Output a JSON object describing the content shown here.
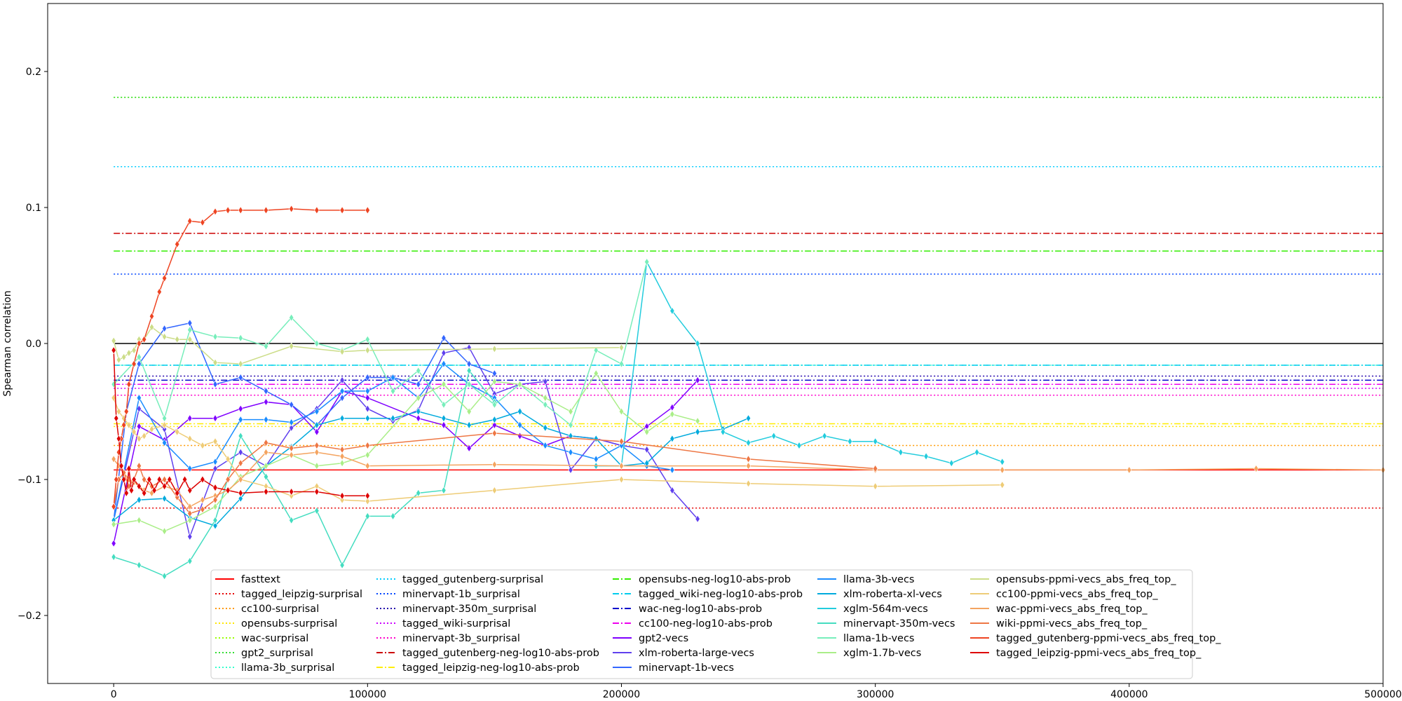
{
  "chart_data": {
    "type": "line",
    "title": "",
    "xlabel": "",
    "ylabel": "Spearman correlation",
    "xlim": [
      -26000,
      500000
    ],
    "ylim": [
      -0.25,
      0.25
    ],
    "xticks": [
      0,
      100000,
      200000,
      300000,
      400000,
      500000
    ],
    "xtick_labels": [
      "0",
      "100000",
      "200000",
      "300000",
      "400000",
      "500000"
    ],
    "yticks": [
      -0.2,
      -0.1,
      0.0,
      0.1,
      0.2
    ],
    "ytick_labels": [
      "−0.2",
      "−0.1",
      "0.0",
      "0.1",
      "0.2"
    ],
    "grid": false,
    "legend_position": "lower-center",
    "zero_line": 0.0,
    "baselines": [
      {
        "name": "fasttext",
        "value": -0.093,
        "color": "#ff0000",
        "style": "solid"
      },
      {
        "name": "tagged_leipzig-surprisal",
        "value": -0.121,
        "color": "#e60000",
        "style": "dotted"
      },
      {
        "name": "cc100-surprisal",
        "value": -0.075,
        "color": "#ff9900",
        "style": "dotted"
      },
      {
        "name": "opensubs-surprisal",
        "value": -0.061,
        "color": "#ffe600",
        "style": "dotted"
      },
      {
        "name": "wac-surprisal",
        "value": 0.181,
        "color": "#99ff00",
        "style": "dotted"
      },
      {
        "name": "gpt2_surprisal",
        "value": 0.181,
        "color": "#33dd33",
        "style": "dotted"
      },
      {
        "name": "llama-3b_surprisal",
        "value": -0.016,
        "color": "#33ffcc",
        "style": "dotted"
      },
      {
        "name": "tagged_gutenberg-surprisal",
        "value": 0.13,
        "color": "#00ccff",
        "style": "dotted"
      },
      {
        "name": "minervapt-1b_surprisal",
        "value": 0.051,
        "color": "#0044ff",
        "style": "dotted"
      },
      {
        "name": "minervapt-350m_surprisal",
        "value": -0.024,
        "color": "#2200aa",
        "style": "dotted"
      },
      {
        "name": "tagged_wiki-surprisal",
        "value": -0.033,
        "color": "#cc00ff",
        "style": "dotted"
      },
      {
        "name": "minervapt-3b_surprisal",
        "value": -0.038,
        "color": "#ff00cc",
        "style": "dotted"
      },
      {
        "name": "tagged_gutenberg-neg-log10-abs-prob",
        "value": 0.081,
        "color": "#cc0000",
        "style": "dashdot"
      },
      {
        "name": "tagged_leipzig-neg-log10-abs-prob",
        "value": -0.059,
        "color": "#ffee00",
        "style": "dashdot"
      },
      {
        "name": "opensubs-neg-log10-abs-prob",
        "value": 0.068,
        "color": "#33ee00",
        "style": "dashdot"
      },
      {
        "name": "tagged_wiki-neg-log10-abs-prob",
        "value": -0.016,
        "color": "#00ccee",
        "style": "dashdot"
      },
      {
        "name": "wac-neg-log10-abs-prob",
        "value": -0.027,
        "color": "#0000cc",
        "style": "dashdot"
      },
      {
        "name": "cc100-neg-log10-abs-prob",
        "value": -0.03,
        "color": "#ee00ee",
        "style": "dashdot"
      }
    ],
    "series": [
      {
        "name": "gpt2-vecs",
        "color": "#8000ff",
        "x": [
          0,
          10000,
          20000,
          30000,
          40000,
          50000,
          60000,
          70000,
          80000,
          90000,
          100000,
          120000,
          130000,
          140000,
          150000,
          160000,
          170000,
          180000,
          190000,
          200000,
          210000,
          220000,
          230000
        ],
        "y": [
          -0.147,
          -0.061,
          -0.071,
          -0.055,
          -0.055,
          -0.048,
          -0.043,
          -0.045,
          -0.065,
          -0.035,
          -0.04,
          -0.055,
          -0.06,
          -0.077,
          -0.06,
          -0.068,
          -0.075,
          -0.068,
          -0.07,
          -0.075,
          -0.061,
          -0.047,
          -0.027
        ]
      },
      {
        "name": "xlm-roberta-large-vecs",
        "color": "#6040ee",
        "x": [
          0,
          10000,
          20000,
          30000,
          40000,
          50000,
          60000,
          70000,
          80000,
          90000,
          100000,
          110000,
          120000,
          130000,
          140000,
          150000,
          160000,
          170000,
          180000,
          190000,
          200000,
          210000,
          220000,
          230000
        ],
        "y": [
          -0.13,
          -0.048,
          -0.063,
          -0.142,
          -0.092,
          -0.08,
          -0.09,
          -0.062,
          -0.048,
          -0.027,
          -0.048,
          -0.057,
          -0.049,
          -0.007,
          -0.003,
          -0.037,
          -0.03,
          -0.028,
          -0.093,
          -0.07,
          -0.075,
          -0.078,
          -0.108,
          -0.129
        ]
      },
      {
        "name": "minervapt-1b-vecs",
        "color": "#3366ff",
        "x": [
          0,
          5000,
          10000,
          20000,
          30000,
          40000,
          50000,
          60000,
          70000,
          80000,
          90000,
          100000,
          110000,
          120000,
          130000,
          140000,
          150000
        ],
        "y": [
          -0.13,
          -0.05,
          -0.015,
          0.011,
          0.015,
          -0.03,
          -0.025,
          -0.035,
          -0.045,
          -0.06,
          -0.04,
          -0.025,
          -0.025,
          -0.03,
          0.004,
          -0.015,
          -0.022
        ]
      },
      {
        "name": "llama-3b-vecs",
        "color": "#1a8cff",
        "x": [
          0,
          10000,
          20000,
          30000,
          40000,
          50000,
          60000,
          70000,
          80000,
          90000,
          100000,
          110000,
          120000,
          130000,
          140000,
          150000,
          160000,
          170000,
          180000,
          190000,
          200000,
          210000,
          220000
        ],
        "y": [
          -0.13,
          -0.04,
          -0.073,
          -0.092,
          -0.087,
          -0.056,
          -0.056,
          -0.058,
          -0.05,
          -0.035,
          -0.035,
          -0.025,
          -0.04,
          -0.015,
          -0.03,
          -0.04,
          -0.06,
          -0.075,
          -0.08,
          -0.085,
          -0.075,
          -0.09,
          -0.093
        ]
      },
      {
        "name": "xlm-roberta-xl-vecs",
        "color": "#00aadd",
        "x": [
          0,
          10000,
          20000,
          30000,
          40000,
          50000,
          60000,
          70000,
          80000,
          90000,
          100000,
          110000,
          120000,
          130000,
          140000,
          150000,
          160000,
          170000,
          180000,
          190000,
          200000,
          210000,
          220000,
          230000,
          240000,
          250000
        ],
        "y": [
          -0.13,
          -0.115,
          -0.114,
          -0.128,
          -0.134,
          -0.114,
          -0.09,
          -0.076,
          -0.06,
          -0.055,
          -0.055,
          -0.055,
          -0.05,
          -0.055,
          -0.06,
          -0.056,
          -0.05,
          -0.062,
          -0.068,
          -0.07,
          -0.09,
          -0.088,
          -0.07,
          -0.065,
          -0.063,
          -0.055
        ]
      },
      {
        "name": "xglm-564m-vecs",
        "color": "#22ccdd",
        "x": [
          190000,
          200000,
          210000,
          220000,
          230000,
          240000,
          250000,
          260000,
          270000,
          280000,
          290000,
          300000,
          310000,
          320000,
          330000,
          340000,
          350000
        ],
        "y": [
          -0.09,
          -0.09,
          0.06,
          0.024,
          0.0,
          -0.065,
          -0.073,
          -0.068,
          -0.075,
          -0.068,
          -0.072,
          -0.072,
          -0.08,
          -0.083,
          -0.088,
          -0.08,
          -0.087
        ]
      },
      {
        "name": "minervapt-350m-vecs",
        "color": "#44ddc0",
        "x": [
          0,
          10000,
          20000,
          30000,
          40000,
          50000,
          60000,
          70000,
          80000,
          90000,
          100000,
          110000,
          120000,
          130000,
          140000,
          150000
        ],
        "y": [
          -0.157,
          -0.163,
          -0.171,
          -0.16,
          -0.13,
          -0.068,
          -0.098,
          -0.13,
          -0.123,
          -0.163,
          -0.127,
          -0.127,
          -0.11,
          -0.108,
          -0.02,
          -0.043
        ]
      },
      {
        "name": "llama-1b-vecs",
        "color": "#77eebb",
        "x": [
          0,
          10000,
          20000,
          30000,
          40000,
          50000,
          60000,
          70000,
          80000,
          90000,
          100000,
          110000,
          120000,
          130000,
          140000,
          150000,
          160000,
          170000,
          180000,
          190000,
          200000,
          210000
        ],
        "y": [
          -0.03,
          -0.01,
          -0.055,
          0.01,
          0.005,
          0.004,
          -0.002,
          0.019,
          0.0,
          -0.005,
          0.003,
          -0.035,
          -0.02,
          -0.045,
          -0.03,
          -0.045,
          -0.03,
          -0.045,
          -0.06,
          -0.005,
          -0.015,
          0.06
        ]
      },
      {
        "name": "xglm-1.7b-vecs",
        "color": "#aaee88",
        "x": [
          0,
          10000,
          20000,
          30000,
          40000,
          50000,
          60000,
          70000,
          80000,
          90000,
          100000,
          120000,
          130000,
          140000,
          150000,
          160000,
          170000,
          180000,
          190000,
          200000,
          210000,
          220000,
          230000
        ],
        "y": [
          -0.133,
          -0.13,
          -0.138,
          -0.13,
          -0.12,
          -0.098,
          -0.09,
          -0.082,
          -0.09,
          -0.088,
          -0.082,
          -0.04,
          -0.03,
          -0.05,
          -0.028,
          -0.03,
          -0.04,
          -0.05,
          -0.022,
          -0.05,
          -0.065,
          -0.052,
          -0.057
        ]
      },
      {
        "name": "opensubs-ppmi-vecs_abs_freq_top_",
        "color": "#ccdd88",
        "x": [
          0,
          2000,
          4000,
          6000,
          8000,
          10000,
          12000,
          15000,
          20000,
          25000,
          30000,
          40000,
          50000,
          70000,
          90000,
          100000,
          150000,
          200000
        ],
        "y": [
          0.002,
          -0.012,
          -0.01,
          -0.007,
          -0.005,
          0.003,
          0.003,
          0.012,
          0.005,
          0.003,
          0.003,
          -0.014,
          -0.015,
          -0.002,
          -0.006,
          -0.005,
          -0.004,
          -0.003
        ]
      },
      {
        "name": "cc100-ppmi-vecs_abs_freq_top_",
        "color": "#eecc77",
        "x": [
          0,
          2000,
          4000,
          6000,
          8000,
          10000,
          12000,
          15000,
          20000,
          25000,
          30000,
          35000,
          40000,
          45000,
          50000,
          60000,
          70000,
          80000,
          90000,
          100000,
          150000,
          200000,
          250000,
          300000,
          350000
        ],
        "y": [
          -0.04,
          -0.05,
          -0.055,
          -0.06,
          -0.065,
          -0.07,
          -0.068,
          -0.063,
          -0.06,
          -0.065,
          -0.07,
          -0.075,
          -0.072,
          -0.085,
          -0.1,
          -0.105,
          -0.112,
          -0.105,
          -0.115,
          -0.116,
          -0.108,
          -0.1,
          -0.103,
          -0.105,
          -0.104
        ]
      },
      {
        "name": "wac-ppmi-vecs_abs_freq_top_",
        "color": "#f4a460",
        "x": [
          0,
          2000,
          4000,
          6000,
          8000,
          10000,
          12000,
          15000,
          20000,
          25000,
          30000,
          35000,
          40000,
          45000,
          50000,
          60000,
          70000,
          80000,
          90000,
          100000,
          150000,
          200000,
          250000,
          300000,
          350000,
          400000,
          450000,
          500000
        ],
        "y": [
          -0.085,
          -0.09,
          -0.095,
          -0.1,
          -0.102,
          -0.105,
          -0.108,
          -0.11,
          -0.105,
          -0.108,
          -0.12,
          -0.115,
          -0.112,
          -0.108,
          -0.1,
          -0.08,
          -0.082,
          -0.08,
          -0.083,
          -0.09,
          -0.089,
          -0.09,
          -0.09,
          -0.093,
          -0.093,
          -0.093,
          -0.092,
          -0.093
        ]
      },
      {
        "name": "wiki-ppmi-vecs_abs_freq_top_",
        "color": "#ee7744",
        "x": [
          0,
          2000,
          4000,
          6000,
          8000,
          10000,
          12000,
          15000,
          20000,
          25000,
          30000,
          35000,
          40000,
          45000,
          50000,
          60000,
          70000,
          80000,
          90000,
          100000,
          150000,
          200000,
          250000,
          300000
        ],
        "y": [
          -0.12,
          -0.1,
          -0.095,
          -0.105,
          -0.1,
          -0.09,
          -0.1,
          -0.105,
          -0.1,
          -0.113,
          -0.125,
          -0.122,
          -0.115,
          -0.1,
          -0.088,
          -0.073,
          -0.077,
          -0.075,
          -0.078,
          -0.075,
          -0.066,
          -0.072,
          -0.085,
          -0.092
        ]
      },
      {
        "name": "tagged_gutenberg-ppmi-vecs_abs_freq_top_",
        "color": "#ee4422",
        "x": [
          0,
          1000,
          2000,
          3000,
          4000,
          5000,
          6000,
          8000,
          10000,
          12000,
          15000,
          18000,
          20000,
          25000,
          30000,
          35000,
          40000,
          45000,
          50000,
          60000,
          70000,
          80000,
          90000,
          100000
        ],
        "y": [
          -0.12,
          -0.1,
          -0.08,
          -0.07,
          -0.06,
          -0.05,
          -0.03,
          -0.015,
          0.0,
          0.003,
          0.02,
          0.038,
          0.048,
          0.073,
          0.09,
          0.089,
          0.097,
          0.098,
          0.098,
          0.098,
          0.099,
          0.098,
          0.098,
          0.098
        ]
      },
      {
        "name": "tagged_leipzig-ppmi-vecs_abs_freq_top_",
        "color": "#dd0000",
        "x": [
          0,
          1000,
          2000,
          3000,
          4000,
          5000,
          6000,
          7000,
          8000,
          10000,
          12000,
          14000,
          16000,
          18000,
          20000,
          22000,
          25000,
          28000,
          30000,
          35000,
          40000,
          45000,
          50000,
          60000,
          70000,
          80000,
          90000,
          100000
        ],
        "y": [
          -0.005,
          -0.055,
          -0.07,
          -0.09,
          -0.1,
          -0.11,
          -0.092,
          -0.108,
          -0.1,
          -0.105,
          -0.11,
          -0.1,
          -0.108,
          -0.1,
          -0.105,
          -0.1,
          -0.11,
          -0.1,
          -0.108,
          -0.1,
          -0.106,
          -0.108,
          -0.11,
          -0.109,
          -0.109,
          -0.109,
          -0.112,
          -0.112
        ]
      }
    ],
    "legend_columns": [
      [
        "fasttext",
        "tagged_leipzig-surprisal",
        "cc100-surprisal",
        "opensubs-surprisal",
        "wac-surprisal",
        "gpt2_surprisal",
        "llama-3b_surprisal"
      ],
      [
        "tagged_gutenberg-surprisal",
        "minervapt-1b_surprisal",
        "minervapt-350m_surprisal",
        "tagged_wiki-surprisal",
        "minervapt-3b_surprisal",
        "tagged_gutenberg-neg-log10-abs-prob",
        "tagged_leipzig-neg-log10-abs-prob"
      ],
      [
        "opensubs-neg-log10-abs-prob",
        "tagged_wiki-neg-log10-abs-prob",
        "wac-neg-log10-abs-prob",
        "cc100-neg-log10-abs-prob",
        "gpt2-vecs",
        "xlm-roberta-large-vecs",
        "minervapt-1b-vecs"
      ],
      [
        "llama-3b-vecs",
        "xlm-roberta-xl-vecs",
        "xglm-564m-vecs",
        "minervapt-350m-vecs",
        "llama-1b-vecs",
        "xglm-1.7b-vecs"
      ],
      [
        "opensubs-ppmi-vecs_abs_freq_top_",
        "cc100-ppmi-vecs_abs_freq_top_",
        "wac-ppmi-vecs_abs_freq_top_",
        "wiki-ppmi-vecs_abs_freq_top_",
        "tagged_gutenberg-ppmi-vecs_abs_freq_top_",
        "tagged_leipzig-ppmi-vecs_abs_freq_top_"
      ]
    ]
  }
}
